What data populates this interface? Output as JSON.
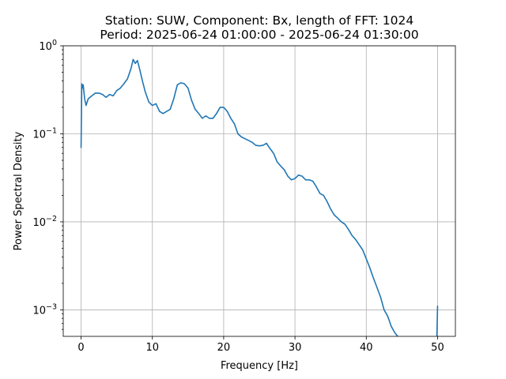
{
  "chart_data": {
    "type": "line",
    "title_line1": "Station: SUW, Component: Bx, length of FFT: 1024",
    "title_line2": "Period: 2025-06-24 01:00:00 - 2025-06-24 01:30:00",
    "xlabel": "Frequency [Hz]",
    "ylabel": "Power Spectral Density",
    "xlim": [
      -2.5,
      52.5
    ],
    "ylim": [
      0.0005,
      1
    ],
    "yscale": "log",
    "grid": true,
    "x_ticks": [
      {
        "value": 0,
        "label": "0"
      },
      {
        "value": 10,
        "label": "10"
      },
      {
        "value": 20,
        "label": "20"
      },
      {
        "value": 30,
        "label": "30"
      },
      {
        "value": 40,
        "label": "40"
      },
      {
        "value": 50,
        "label": "50"
      }
    ],
    "y_ticks": [
      {
        "value": 1,
        "base": "10",
        "exp": "0"
      },
      {
        "value": 0.1,
        "base": "10",
        "exp": "−1"
      },
      {
        "value": 0.01,
        "base": "10",
        "exp": "−2"
      },
      {
        "value": 0.001,
        "base": "10",
        "exp": "−3"
      }
    ],
    "series": [
      {
        "color": "#1f77b4",
        "x": [
          0,
          0.1,
          0.2,
          0.3,
          0.5,
          0.7,
          1.0,
          1.5,
          2.0,
          2.5,
          3.0,
          3.5,
          4.0,
          4.5,
          5.0,
          5.5,
          6.0,
          6.5,
          7.0,
          7.3,
          7.6,
          7.9,
          8.2,
          8.6,
          9.0,
          9.5,
          10.0,
          10.5,
          11.0,
          11.5,
          12.0,
          12.5,
          13.0,
          13.5,
          14.0,
          14.5,
          15.0,
          15.5,
          16.0,
          16.5,
          17.0,
          17.5,
          18.0,
          18.5,
          19.0,
          19.5,
          20.0,
          20.5,
          21.0,
          21.5,
          22.0,
          22.5,
          23.0,
          23.5,
          24.0,
          24.5,
          25.0,
          25.5,
          26.0,
          26.5,
          27.0,
          27.5,
          28.0,
          28.5,
          29.0,
          29.5,
          30.0,
          30.5,
          31.0,
          31.5,
          32.0,
          32.5,
          33.0,
          33.5,
          34.0,
          34.5,
          35.0,
          35.5,
          36.0,
          36.5,
          37.0,
          37.5,
          38.0,
          38.5,
          39.0,
          39.5,
          40.0,
          40.5,
          41.0,
          41.5,
          42.0,
          42.5,
          43.0,
          43.5,
          44.0,
          44.5
        ],
        "y": [
          0.07,
          0.37,
          0.33,
          0.36,
          0.25,
          0.21,
          0.25,
          0.27,
          0.29,
          0.29,
          0.28,
          0.26,
          0.28,
          0.27,
          0.31,
          0.33,
          0.37,
          0.42,
          0.55,
          0.7,
          0.63,
          0.68,
          0.55,
          0.4,
          0.3,
          0.23,
          0.21,
          0.22,
          0.18,
          0.17,
          0.18,
          0.19,
          0.25,
          0.36,
          0.38,
          0.37,
          0.33,
          0.24,
          0.19,
          0.17,
          0.15,
          0.16,
          0.15,
          0.15,
          0.17,
          0.2,
          0.2,
          0.18,
          0.15,
          0.13,
          0.1,
          0.092,
          0.088,
          0.084,
          0.08,
          0.074,
          0.073,
          0.074,
          0.078,
          0.068,
          0.06,
          0.048,
          0.043,
          0.039,
          0.033,
          0.03,
          0.031,
          0.034,
          0.033,
          0.03,
          0.03,
          0.029,
          0.025,
          0.021,
          0.02,
          0.017,
          0.014,
          0.012,
          0.011,
          0.01,
          0.0094,
          0.0082,
          0.007,
          0.0063,
          0.0055,
          0.0048,
          0.0038,
          0.003,
          0.0023,
          0.0018,
          0.0014,
          0.001,
          0.00085,
          0.00065,
          0.00055,
          0.00049
        ]
      },
      {
        "color": "#1f77b4",
        "x": [
          49.9,
          50.0
        ],
        "y": [
          0.00049,
          0.0011
        ]
      }
    ]
  }
}
